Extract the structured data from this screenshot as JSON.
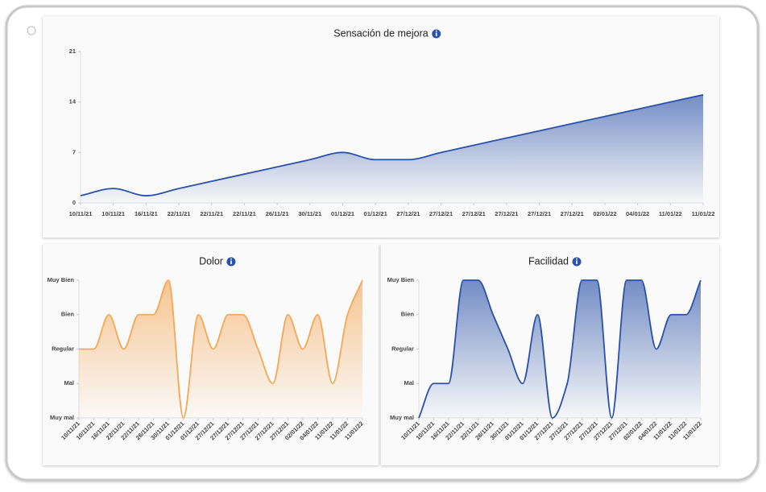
{
  "chart_data": [
    {
      "type": "area",
      "title": "Sensación de mejora",
      "color": "#2a52a8",
      "categories": [
        "10/11/21",
        "10/11/21",
        "16/11/21",
        "22/11/21",
        "22/11/21",
        "22/11/21",
        "26/11/21",
        "30/11/21",
        "01/12/21",
        "01/12/21",
        "27/12/21",
        "27/12/21",
        "27/12/21",
        "27/12/21",
        "27/12/21",
        "27/12/21",
        "02/01/22",
        "04/01/22",
        "11/01/22",
        "11/01/22"
      ],
      "values": [
        1,
        2,
        1,
        2,
        3,
        4,
        5,
        6,
        7,
        6,
        6,
        7,
        8,
        9,
        10,
        11,
        12,
        13,
        14,
        15
      ],
      "ylim": [
        0,
        21
      ],
      "yticks": [
        0,
        7,
        14,
        21
      ]
    },
    {
      "type": "area",
      "title": "Dolor",
      "color": "#f5a858",
      "categories": [
        "10/11/21",
        "10/11/21",
        "16/11/21",
        "22/11/21",
        "22/11/21",
        "26/11/21",
        "30/11/21",
        "01/12/21",
        "01/12/21",
        "27/12/21",
        "27/12/21",
        "27/12/21",
        "27/12/21",
        "27/12/21",
        "27/12/21",
        "02/01/22",
        "04/01/22",
        "11/01/22",
        "11/01/22",
        "11/01/22"
      ],
      "values": [
        3,
        3,
        4,
        3,
        4,
        4,
        5,
        1,
        4,
        3,
        4,
        4,
        3,
        2,
        4,
        3,
        4,
        2,
        4,
        5
      ],
      "ylim": [
        1,
        5
      ],
      "yticks": [
        {
          "value": 1,
          "label": "Muy mal"
        },
        {
          "value": 2,
          "label": "Mal"
        },
        {
          "value": 3,
          "label": "Regular"
        },
        {
          "value": 4,
          "label": "Bien"
        },
        {
          "value": 5,
          "label": "Muy Bien"
        }
      ]
    },
    {
      "type": "area",
      "title": "Facilidad",
      "color": "#2a52a8",
      "categories": [
        "10/11/21",
        "10/11/21",
        "16/11/21",
        "22/11/21",
        "22/11/21",
        "26/11/21",
        "30/11/21",
        "01/12/21",
        "01/12/21",
        "27/12/21",
        "27/12/21",
        "27/12/21",
        "27/12/21",
        "27/12/21",
        "27/12/21",
        "02/01/22",
        "04/01/22",
        "11/01/22",
        "11/01/22",
        "11/01/22"
      ],
      "values": [
        1,
        2,
        2,
        5,
        5,
        4,
        3,
        2,
        4,
        1,
        2,
        5,
        5,
        1,
        5,
        5,
        3,
        4,
        4,
        5
      ],
      "ylim": [
        1,
        5
      ],
      "yticks": [
        {
          "value": 1,
          "label": "Muy mal"
        },
        {
          "value": 2,
          "label": "Mal"
        },
        {
          "value": 3,
          "label": "Regular"
        },
        {
          "value": 4,
          "label": "Bien"
        },
        {
          "value": 5,
          "label": "Muy Bien"
        }
      ]
    }
  ]
}
